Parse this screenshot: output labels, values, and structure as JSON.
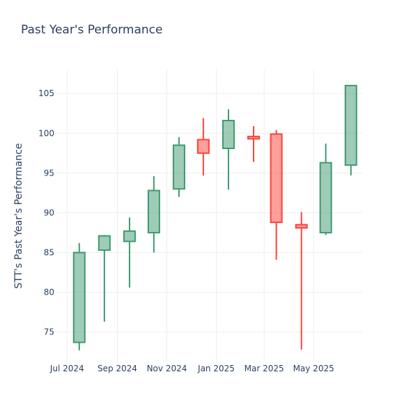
{
  "chart_data": {
    "type": "candlestick",
    "title": "Past Year's Performance",
    "ylabel": "STT's Past Year's Performance",
    "xlabel": "",
    "ylim": [
      71.2,
      108
    ],
    "yticks": [
      75,
      80,
      85,
      90,
      95,
      100,
      105
    ],
    "xticks": [
      {
        "label": "Jul 2024",
        "date": "2024-07-01"
      },
      {
        "label": "Sep 2024",
        "date": "2024-09-01"
      },
      {
        "label": "Nov 2024",
        "date": "2024-11-01"
      },
      {
        "label": "Jan 2025",
        "date": "2025-01-01"
      },
      {
        "label": "Mar 2025",
        "date": "2025-03-01"
      },
      {
        "label": "May 2025",
        "date": "2025-05-01"
      }
    ],
    "increasing_color": "#3d9970",
    "decreasing_color": "#ff4136",
    "candles": [
      {
        "date": "2024-07-01",
        "open": 73.7,
        "high": 86.2,
        "low": 72.7,
        "close": 85.0
      },
      {
        "date": "2024-08-01",
        "open": 85.3,
        "high": 87.2,
        "low": 76.3,
        "close": 87.1
      },
      {
        "date": "2024-09-01",
        "open": 86.4,
        "high": 89.4,
        "low": 80.6,
        "close": 87.7
      },
      {
        "date": "2024-10-01",
        "open": 87.5,
        "high": 94.6,
        "low": 85.0,
        "close": 92.8
      },
      {
        "date": "2024-11-01",
        "open": 93.0,
        "high": 99.5,
        "low": 92.0,
        "close": 98.5
      },
      {
        "date": "2024-12-01",
        "open": 99.2,
        "high": 101.9,
        "low": 94.7,
        "close": 97.5
      },
      {
        "date": "2025-01-01",
        "open": 98.1,
        "high": 103.0,
        "low": 92.9,
        "close": 101.6
      },
      {
        "date": "2025-02-01",
        "open": 99.6,
        "high": 100.9,
        "low": 96.4,
        "close": 99.3
      },
      {
        "date": "2025-03-01",
        "open": 99.9,
        "high": 100.4,
        "low": 84.1,
        "close": 88.8
      },
      {
        "date": "2025-04-01",
        "open": 88.5,
        "high": 90.1,
        "low": 72.8,
        "close": 88.1
      },
      {
        "date": "2025-05-01",
        "open": 87.5,
        "high": 98.7,
        "low": 87.2,
        "close": 96.3
      },
      {
        "date": "2025-06-01",
        "open": 96.0,
        "high": 106.0,
        "low": 94.7,
        "close": 106.0
      }
    ]
  }
}
